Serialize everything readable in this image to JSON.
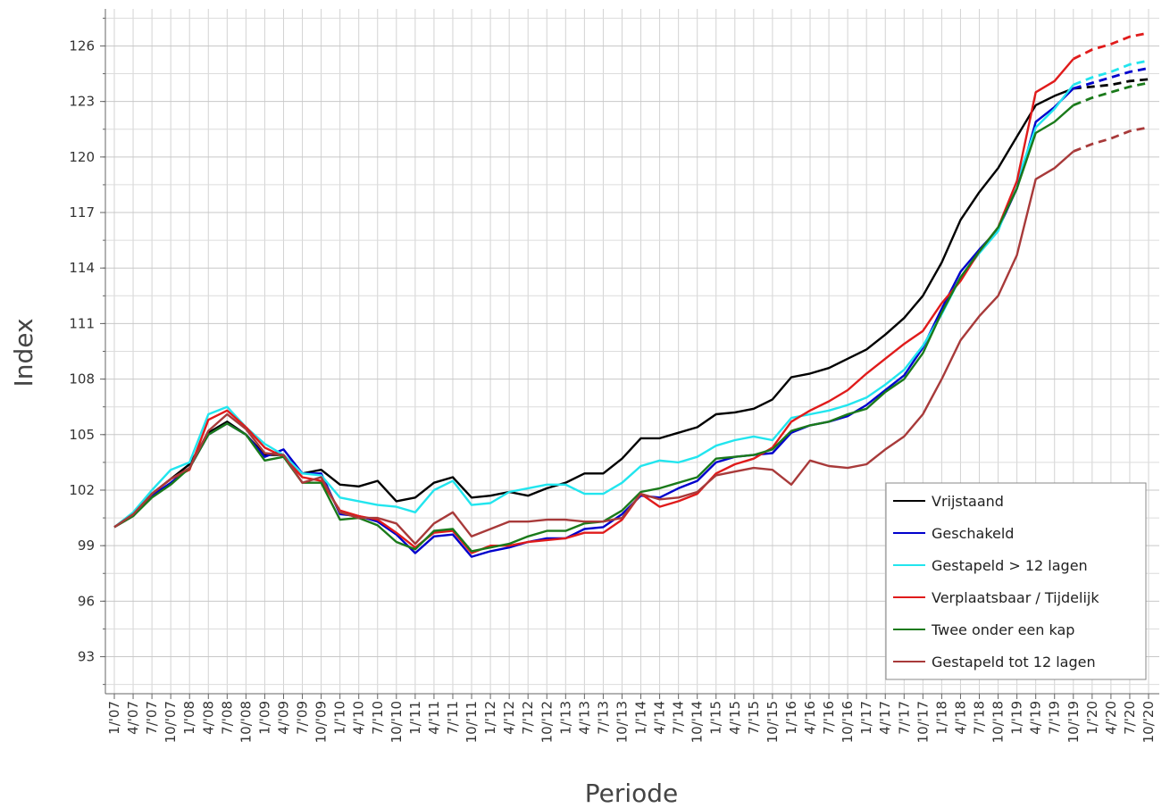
{
  "chart_data": {
    "type": "line",
    "title": "",
    "xlabel": "Periode",
    "ylabel": "Index",
    "ylim": [
      91,
      128
    ],
    "yticks": [
      93,
      96,
      99,
      102,
      105,
      108,
      111,
      114,
      117,
      120,
      123,
      126
    ],
    "grid": true,
    "legend_position": "bottom-right",
    "categories": [
      "1/'07",
      "4/'07",
      "7/'07",
      "10/'07",
      "1/'08",
      "4/'08",
      "7/'08",
      "10/'08",
      "1/'09",
      "4/'09",
      "7/'09",
      "10/'09",
      "1/'10",
      "4/'10",
      "7/'10",
      "10/'10",
      "1/'11",
      "4/'11",
      "7/'11",
      "10/'11",
      "1/'12",
      "4/'12",
      "7/'12",
      "10/'12",
      "1/'13",
      "4/'13",
      "7/'13",
      "10/'13",
      "1/'14",
      "4/'14",
      "7/'14",
      "10/'14",
      "1/'15",
      "4/'15",
      "7/'15",
      "10/'15",
      "1/'16",
      "4/'16",
      "7/'16",
      "10/'16",
      "1/'17",
      "4/'17",
      "7/'17",
      "10/'17",
      "1/'18",
      "4/'18",
      "7/'18",
      "10/'18",
      "1/'19",
      "4/'19",
      "7/'19",
      "10/'19",
      "1/'20",
      "4/'20",
      "7/'20",
      "10/'20"
    ],
    "forecast_start_index": 51,
    "series": [
      {
        "name": "Vrijstaand",
        "color": "#000000",
        "values": [
          100,
          100.7,
          101.8,
          102.6,
          103.4,
          105.1,
          105.7,
          105.0,
          103.9,
          103.9,
          102.9,
          103.1,
          102.3,
          102.2,
          102.5,
          101.4,
          101.6,
          102.4,
          102.7,
          101.6,
          101.7,
          101.9,
          101.7,
          102.1,
          102.4,
          102.9,
          102.9,
          103.7,
          104.8,
          104.8,
          105.1,
          105.4,
          106.1,
          106.2,
          106.4,
          106.9,
          108.1,
          108.3,
          108.6,
          109.1,
          109.6,
          110.4,
          111.3,
          112.5,
          114.3,
          116.6,
          118.1,
          119.4,
          121.1,
          122.8,
          123.3,
          123.7,
          123.8,
          123.9,
          124.1,
          124.2
        ]
      },
      {
        "name": "Geschakeld",
        "color": "#0000cc",
        "values": [
          100,
          100.6,
          101.7,
          102.4,
          103.2,
          105.0,
          105.6,
          105.0,
          103.8,
          104.2,
          102.9,
          102.9,
          100.7,
          100.6,
          100.3,
          99.6,
          98.6,
          99.5,
          99.6,
          98.4,
          98.7,
          98.9,
          99.2,
          99.4,
          99.4,
          99.9,
          100.0,
          100.7,
          101.7,
          101.6,
          102.1,
          102.5,
          103.5,
          103.8,
          103.9,
          104.0,
          105.1,
          105.5,
          105.7,
          106.0,
          106.6,
          107.4,
          108.2,
          109.7,
          111.8,
          113.8,
          115.0,
          116.1,
          118.3,
          121.9,
          122.7,
          123.7,
          124.0,
          124.3,
          124.6,
          124.8
        ]
      },
      {
        "name": "Gestapeld > 12 lagen",
        "color": "#22e5ee",
        "values": [
          100,
          100.8,
          102.0,
          103.1,
          103.5,
          106.1,
          106.5,
          105.4,
          104.5,
          103.9,
          102.9,
          102.8,
          101.6,
          101.4,
          101.2,
          101.1,
          100.8,
          102.0,
          102.5,
          101.2,
          101.3,
          101.9,
          102.1,
          102.3,
          102.3,
          101.8,
          101.8,
          102.4,
          103.3,
          103.6,
          103.5,
          103.8,
          104.4,
          104.7,
          104.9,
          104.7,
          105.9,
          106.1,
          106.3,
          106.6,
          107.0,
          107.7,
          108.5,
          109.8,
          111.5,
          113.5,
          114.8,
          116.0,
          118.7,
          121.6,
          122.6,
          123.9,
          124.3,
          124.6,
          125.0,
          125.2
        ]
      },
      {
        "name": "Verplaatsbaar / Tijdelijk",
        "color": "#e01b1b",
        "values": [
          100,
          100.6,
          101.8,
          102.6,
          103.1,
          105.8,
          106.3,
          105.4,
          104.3,
          103.8,
          102.7,
          102.5,
          100.9,
          100.6,
          100.4,
          99.7,
          98.9,
          99.7,
          99.8,
          98.6,
          99.0,
          99.0,
          99.2,
          99.3,
          99.4,
          99.7,
          99.7,
          100.4,
          101.8,
          101.1,
          101.4,
          101.8,
          102.9,
          103.4,
          103.7,
          104.3,
          105.7,
          106.3,
          106.8,
          107.4,
          108.3,
          109.1,
          109.9,
          110.6,
          112.1,
          113.3,
          114.9,
          116.2,
          118.7,
          123.5,
          124.1,
          125.3,
          125.8,
          126.1,
          126.5,
          126.7
        ]
      },
      {
        "name": "Twee onder een kap",
        "color": "#1a7a1a",
        "values": [
          100,
          100.6,
          101.6,
          102.3,
          103.2,
          105.0,
          105.6,
          105.0,
          103.6,
          103.8,
          102.4,
          102.4,
          100.4,
          100.5,
          100.1,
          99.2,
          98.8,
          99.8,
          99.9,
          98.7,
          98.9,
          99.1,
          99.5,
          99.8,
          99.8,
          100.2,
          100.3,
          100.9,
          101.9,
          102.1,
          102.4,
          102.7,
          103.7,
          103.8,
          103.9,
          104.2,
          105.2,
          105.5,
          105.7,
          106.1,
          106.4,
          107.3,
          108.0,
          109.4,
          111.6,
          113.5,
          114.9,
          116.2,
          118.3,
          121.3,
          121.9,
          122.8,
          123.2,
          123.5,
          123.8,
          124.0
        ]
      },
      {
        "name": "Gestapeld tot 12 lagen",
        "color": "#a83a3a",
        "values": [
          100,
          100.7,
          101.8,
          102.6,
          103.2,
          105.2,
          106.1,
          105.3,
          104.0,
          103.9,
          102.4,
          102.7,
          100.8,
          100.5,
          100.5,
          100.2,
          99.1,
          100.2,
          100.8,
          99.5,
          99.9,
          100.3,
          100.3,
          100.4,
          100.4,
          100.3,
          100.3,
          100.5,
          101.8,
          101.5,
          101.6,
          101.9,
          102.8,
          103.0,
          103.2,
          103.1,
          102.3,
          103.6,
          103.3,
          103.2,
          103.4,
          104.2,
          104.9,
          106.1,
          108.0,
          110.1,
          111.4,
          112.5,
          114.7,
          118.8,
          119.4,
          120.3,
          120.7,
          121.0,
          121.4,
          121.6
        ]
      }
    ]
  }
}
